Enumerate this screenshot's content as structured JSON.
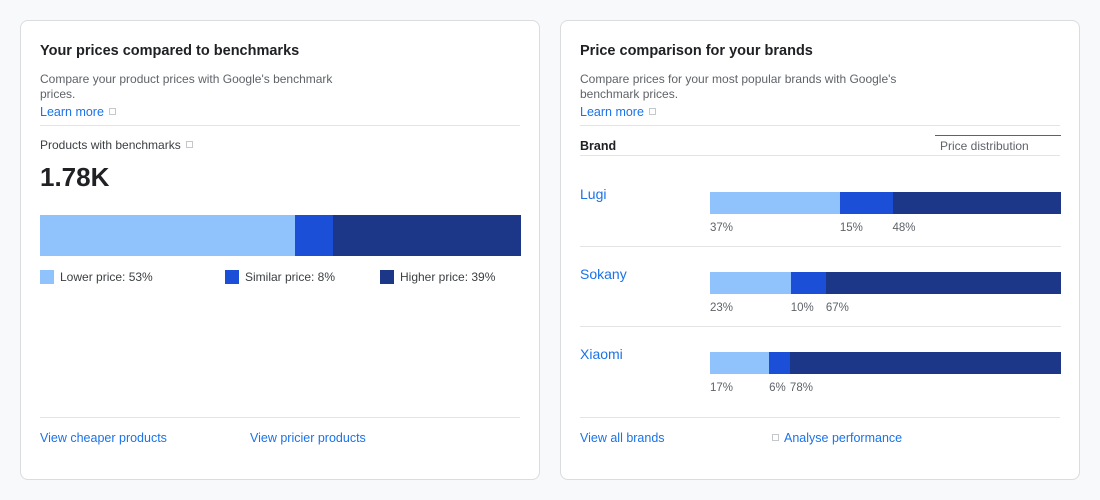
{
  "colors": {
    "lower": "#90c2fb",
    "similar": "#1b4fd8",
    "higher": "#1c3787"
  },
  "left_card": {
    "title": "Your prices compared to benchmarks",
    "description": "Compare your product prices with Google's benchmark prices.",
    "learn_more": "Learn more",
    "metric_label": "Products with benchmarks",
    "metric_value": "1.78K",
    "distribution": {
      "lower": 53,
      "similar": 8,
      "higher": 39
    },
    "legend": {
      "lower": "Lower price: 53%",
      "similar": "Similar price: 8%",
      "higher": "Higher price: 39%"
    },
    "footer": {
      "cheaper": "View cheaper products",
      "pricier": "View pricier products"
    }
  },
  "right_card": {
    "title": "Price comparison for your brands",
    "description": "Compare prices for your most popular brands with Google's benchmark prices.",
    "learn_more": "Learn more",
    "col_brand": "Brand",
    "col_distribution": "Price distribution",
    "brands": [
      {
        "name": "Lugi",
        "lower": 37,
        "similar": 15,
        "higher": 48,
        "lower_label": "37%",
        "similar_label": "15%",
        "higher_label": "48%"
      },
      {
        "name": "Sokany",
        "lower": 23,
        "similar": 10,
        "higher": 67,
        "lower_label": "23%",
        "similar_label": "10%",
        "higher_label": "67%"
      },
      {
        "name": "Xiaomi",
        "lower": 17,
        "similar": 6,
        "higher": 78,
        "lower_label": "17%",
        "similar_label": "6%",
        "higher_label": "78%"
      }
    ],
    "footer": {
      "all_brands": "View all brands",
      "analyse": "Analyse performance"
    }
  }
}
